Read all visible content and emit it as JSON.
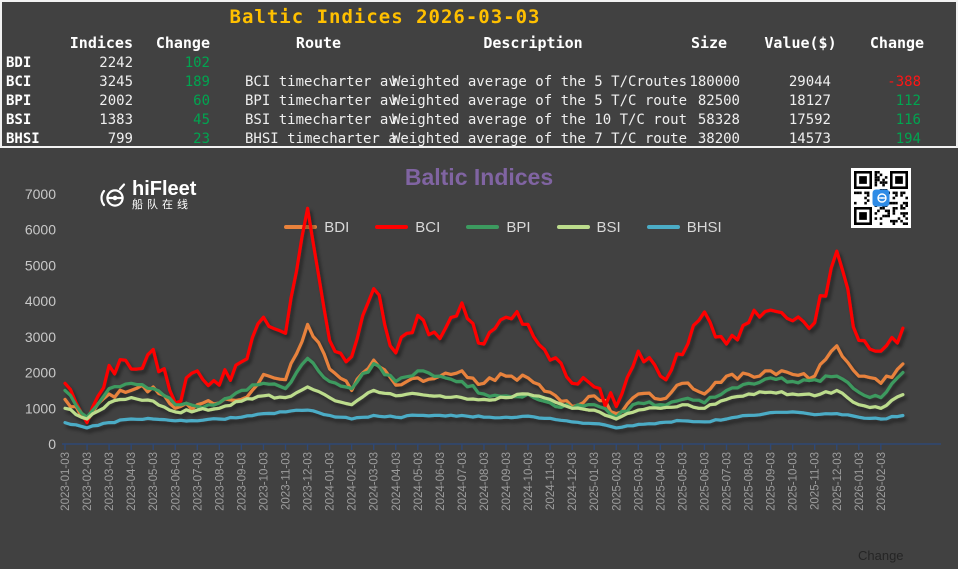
{
  "panel": {
    "title": "Baltic Indices 2026-03-03",
    "columns": [
      "Indices",
      "Change",
      "Route",
      "Description",
      "Size",
      "Value($)",
      "Change"
    ],
    "rows": [
      {
        "name": "BDI",
        "indices": "2242",
        "change": {
          "text": "102",
          "dir": "up"
        },
        "route": "",
        "description": "",
        "size": "",
        "value": "",
        "change2": {
          "text": "",
          "dir": ""
        }
      },
      {
        "name": "BCI",
        "indices": "3245",
        "change": {
          "text": "189",
          "dir": "up"
        },
        "route": "BCI timecharter av",
        "description": "Weighted average of the 5 T/Croutes",
        "size": "180000",
        "value": "29044",
        "change2": {
          "text": "-388",
          "dir": "down"
        }
      },
      {
        "name": "BPI",
        "indices": "2002",
        "change": {
          "text": "60",
          "dir": "up"
        },
        "route": "BPI timecharter av",
        "description": "Weighted average of the 5 T/C route",
        "size": "82500",
        "value": "18127",
        "change2": {
          "text": "112",
          "dir": "up"
        }
      },
      {
        "name": "BSI",
        "indices": "1383",
        "change": {
          "text": "45",
          "dir": "up"
        },
        "route": "BSI timecharter av",
        "description": "Weighted average of the 10 T/C rout",
        "size": "58328",
        "value": "17592",
        "change2": {
          "text": "116",
          "dir": "up"
        }
      },
      {
        "name": "BHSI",
        "indices": "799",
        "change": {
          "text": "23",
          "dir": "up"
        },
        "route": "BHSI timecharter a",
        "description": "Weighted average of the 7 T/C route",
        "size": "38200",
        "value": "14573",
        "change2": {
          "text": "194",
          "dir": "up"
        }
      }
    ]
  },
  "logo": {
    "name": "hiFleet",
    "subtitle": "船队在线"
  },
  "footer": {
    "change_label": "Change"
  },
  "colors": {
    "background": "#414141",
    "panel_border": "#f2f2f2",
    "table_title": "#FFC000",
    "up": "#00A550",
    "down": "#FF1515",
    "chart_title": "#8064A2",
    "axis": "#2F4874",
    "x_tick_label": "#9C9C9C",
    "y_tick_label": "#C8C8C8",
    "legend_text": "#D8D8D8",
    "footer_text": "#252525",
    "qr_accent": "#2E8BE6"
  },
  "chart_data": {
    "type": "line",
    "title": "Baltic Indices",
    "xlabel": "",
    "ylabel": "",
    "ylim": [
      0,
      7000
    ],
    "y_tick_step": 1000,
    "grid": false,
    "legend_position": "top-center",
    "x_labels": [
      "2023-01-03",
      "2023-02-03",
      "2023-03-03",
      "2023-04-03",
      "2023-05-03",
      "2023-06-03",
      "2023-07-03",
      "2023-08-03",
      "2023-09-03",
      "2023-10-03",
      "2023-11-03",
      "2023-12-03",
      "2024-01-03",
      "2024-02-03",
      "2024-03-03",
      "2024-04-03",
      "2024-05-03",
      "2024-06-03",
      "2024-07-03",
      "2024-08-03",
      "2024-09-03",
      "2024-10-03",
      "2024-11-03",
      "2024-12-03",
      "2025-01-03",
      "2025-02-03",
      "2025-03-03",
      "2025-04-03",
      "2025-05-03",
      "2025-06-03",
      "2025-07-03",
      "2025-08-03",
      "2025-09-03",
      "2025-10-03",
      "2025-11-03",
      "2025-12-03",
      "2026-01-03",
      "2026-02-03"
    ],
    "x_end_date": "2026-03-03",
    "series": [
      {
        "name": "BDI",
        "color": "#E8823C",
        "values": [
          1250,
          650,
          1400,
          1500,
          1600,
          1000,
          1100,
          1150,
          1250,
          1950,
          1800,
          3350,
          2100,
          1500,
          2350,
          1650,
          1850,
          1900,
          2050,
          1700,
          1900,
          1850,
          1450,
          1050,
          1350,
          850,
          1400,
          1250,
          1700,
          1400,
          1900,
          1950,
          2050,
          1950,
          1900,
          2750,
          1900,
          1700,
          2242
        ]
      },
      {
        "name": "BCI",
        "color": "#FE0000",
        "values": [
          1700,
          600,
          2200,
          2100,
          2650,
          1150,
          2050,
          1650,
          2300,
          3550,
          3100,
          6600,
          2900,
          2450,
          4350,
          2550,
          3600,
          2950,
          3950,
          2800,
          3550,
          3350,
          2350,
          1700,
          1600,
          1050,
          2600,
          1900,
          2500,
          3700,
          2800,
          3400,
          3750,
          3450,
          3400,
          5400,
          2900,
          2600,
          3245
        ]
      },
      {
        "name": "BPI",
        "color": "#3C9A5F",
        "values": [
          1500,
          750,
          1550,
          1700,
          1550,
          1100,
          1050,
          1150,
          1500,
          1700,
          1550,
          2400,
          1750,
          1550,
          2250,
          1750,
          2050,
          1900,
          1750,
          1400,
          1350,
          1400,
          1150,
          1000,
          1100,
          750,
          1150,
          1100,
          1250,
          1150,
          1500,
          1700,
          1850,
          1750,
          1800,
          1900,
          1450,
          1300,
          2002
        ]
      },
      {
        "name": "BSI",
        "color": "#BCDC8C",
        "values": [
          1000,
          700,
          1150,
          1300,
          1200,
          900,
          950,
          1000,
          1200,
          1350,
          1300,
          1600,
          1300,
          1100,
          1500,
          1350,
          1400,
          1350,
          1300,
          1250,
          1300,
          1400,
          1250,
          1000,
          950,
          700,
          950,
          1000,
          1100,
          1000,
          1250,
          1400,
          1450,
          1400,
          1350,
          1500,
          1100,
          1000,
          1383
        ]
      },
      {
        "name": "BHSI",
        "color": "#4BACC6",
        "values": [
          600,
          450,
          600,
          700,
          700,
          650,
          650,
          700,
          750,
          850,
          900,
          950,
          800,
          700,
          800,
          750,
          800,
          800,
          800,
          750,
          750,
          780,
          720,
          620,
          570,
          450,
          550,
          600,
          650,
          620,
          700,
          800,
          880,
          900,
          820,
          850,
          750,
          700,
          799
        ]
      }
    ]
  }
}
